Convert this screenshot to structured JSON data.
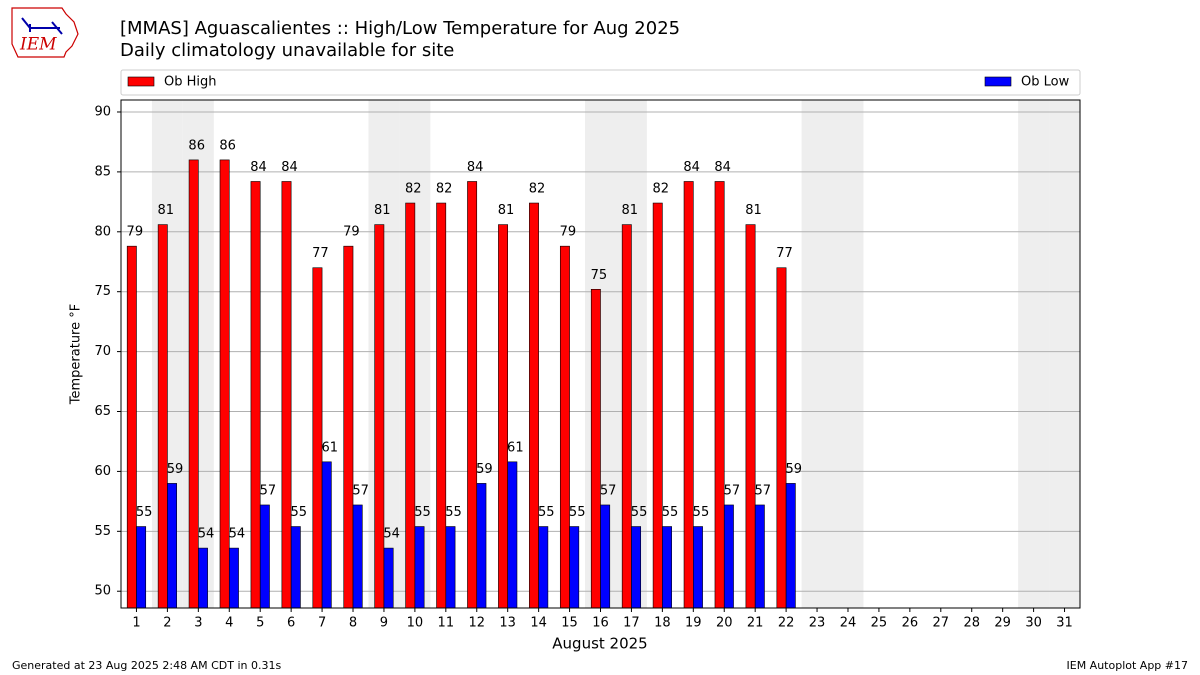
{
  "logo_text": "IEM",
  "chart_data": {
    "type": "bar",
    "title": "[MMAS] Aguascalientes :: High/Low Temperature for Aug 2025",
    "subtitle": "Daily climatology unavailable for site",
    "x_label": "August 2025",
    "y_label": "Temperature °F",
    "categories": [
      "1",
      "2",
      "3",
      "4",
      "5",
      "6",
      "7",
      "8",
      "9",
      "10",
      "11",
      "12",
      "13",
      "14",
      "15",
      "16",
      "17",
      "18",
      "19",
      "20",
      "21",
      "22",
      "23",
      "24",
      "25",
      "26",
      "27",
      "28",
      "29",
      "30",
      "31"
    ],
    "series": [
      {
        "name": "Ob High",
        "color": "#ff0000",
        "values": [
          78.8,
          80.6,
          86,
          86,
          84.2,
          84.2,
          77,
          78.8,
          80.6,
          82.4,
          82.4,
          84.2,
          80.6,
          82.4,
          78.8,
          75.2,
          80.6,
          82.4,
          84.2,
          84.2,
          80.6,
          77,
          null,
          null,
          null,
          null,
          null,
          null,
          null,
          null,
          null
        ],
        "value_labels": [
          "79",
          "81",
          "86",
          "86",
          "84",
          "84",
          "77",
          "79",
          "81",
          "82",
          "82",
          "84",
          "81",
          "82",
          "79",
          "75",
          "81",
          "82",
          "84",
          "84",
          "81",
          "77",
          null,
          null,
          null,
          null,
          null,
          null,
          null,
          null,
          null
        ]
      },
      {
        "name": "Ob Low",
        "color": "#0000ff",
        "values": [
          55.4,
          59,
          53.6,
          53.6,
          57.2,
          55.4,
          60.8,
          57.2,
          53.6,
          55.4,
          55.4,
          59,
          60.8,
          55.4,
          55.4,
          57.2,
          55.4,
          55.4,
          55.4,
          57.2,
          57.2,
          59,
          null,
          null,
          null,
          null,
          null,
          null,
          null,
          null,
          null
        ],
        "value_labels": [
          "55",
          "59",
          "54",
          "54",
          "57",
          "55",
          "61",
          "57",
          "54",
          "55",
          "55",
          "59",
          "61",
          "55",
          "55",
          "57",
          "55",
          "55",
          "55",
          "57",
          "57",
          "59",
          null,
          null,
          null,
          null,
          null,
          null,
          null,
          null,
          null
        ]
      }
    ],
    "weekend_shading": [
      1,
      2,
      8,
      9,
      15,
      16,
      22,
      23,
      29,
      30
    ],
    "ylim": [
      48.6,
      91
    ],
    "yticks": [
      50,
      55,
      60,
      65,
      70,
      75,
      80,
      85,
      90
    ],
    "grid": true,
    "footer_left": "Generated at 23 Aug 2025 2:48 AM CDT in 0.31s",
    "footer_right": "IEM Autoplot App #17"
  }
}
